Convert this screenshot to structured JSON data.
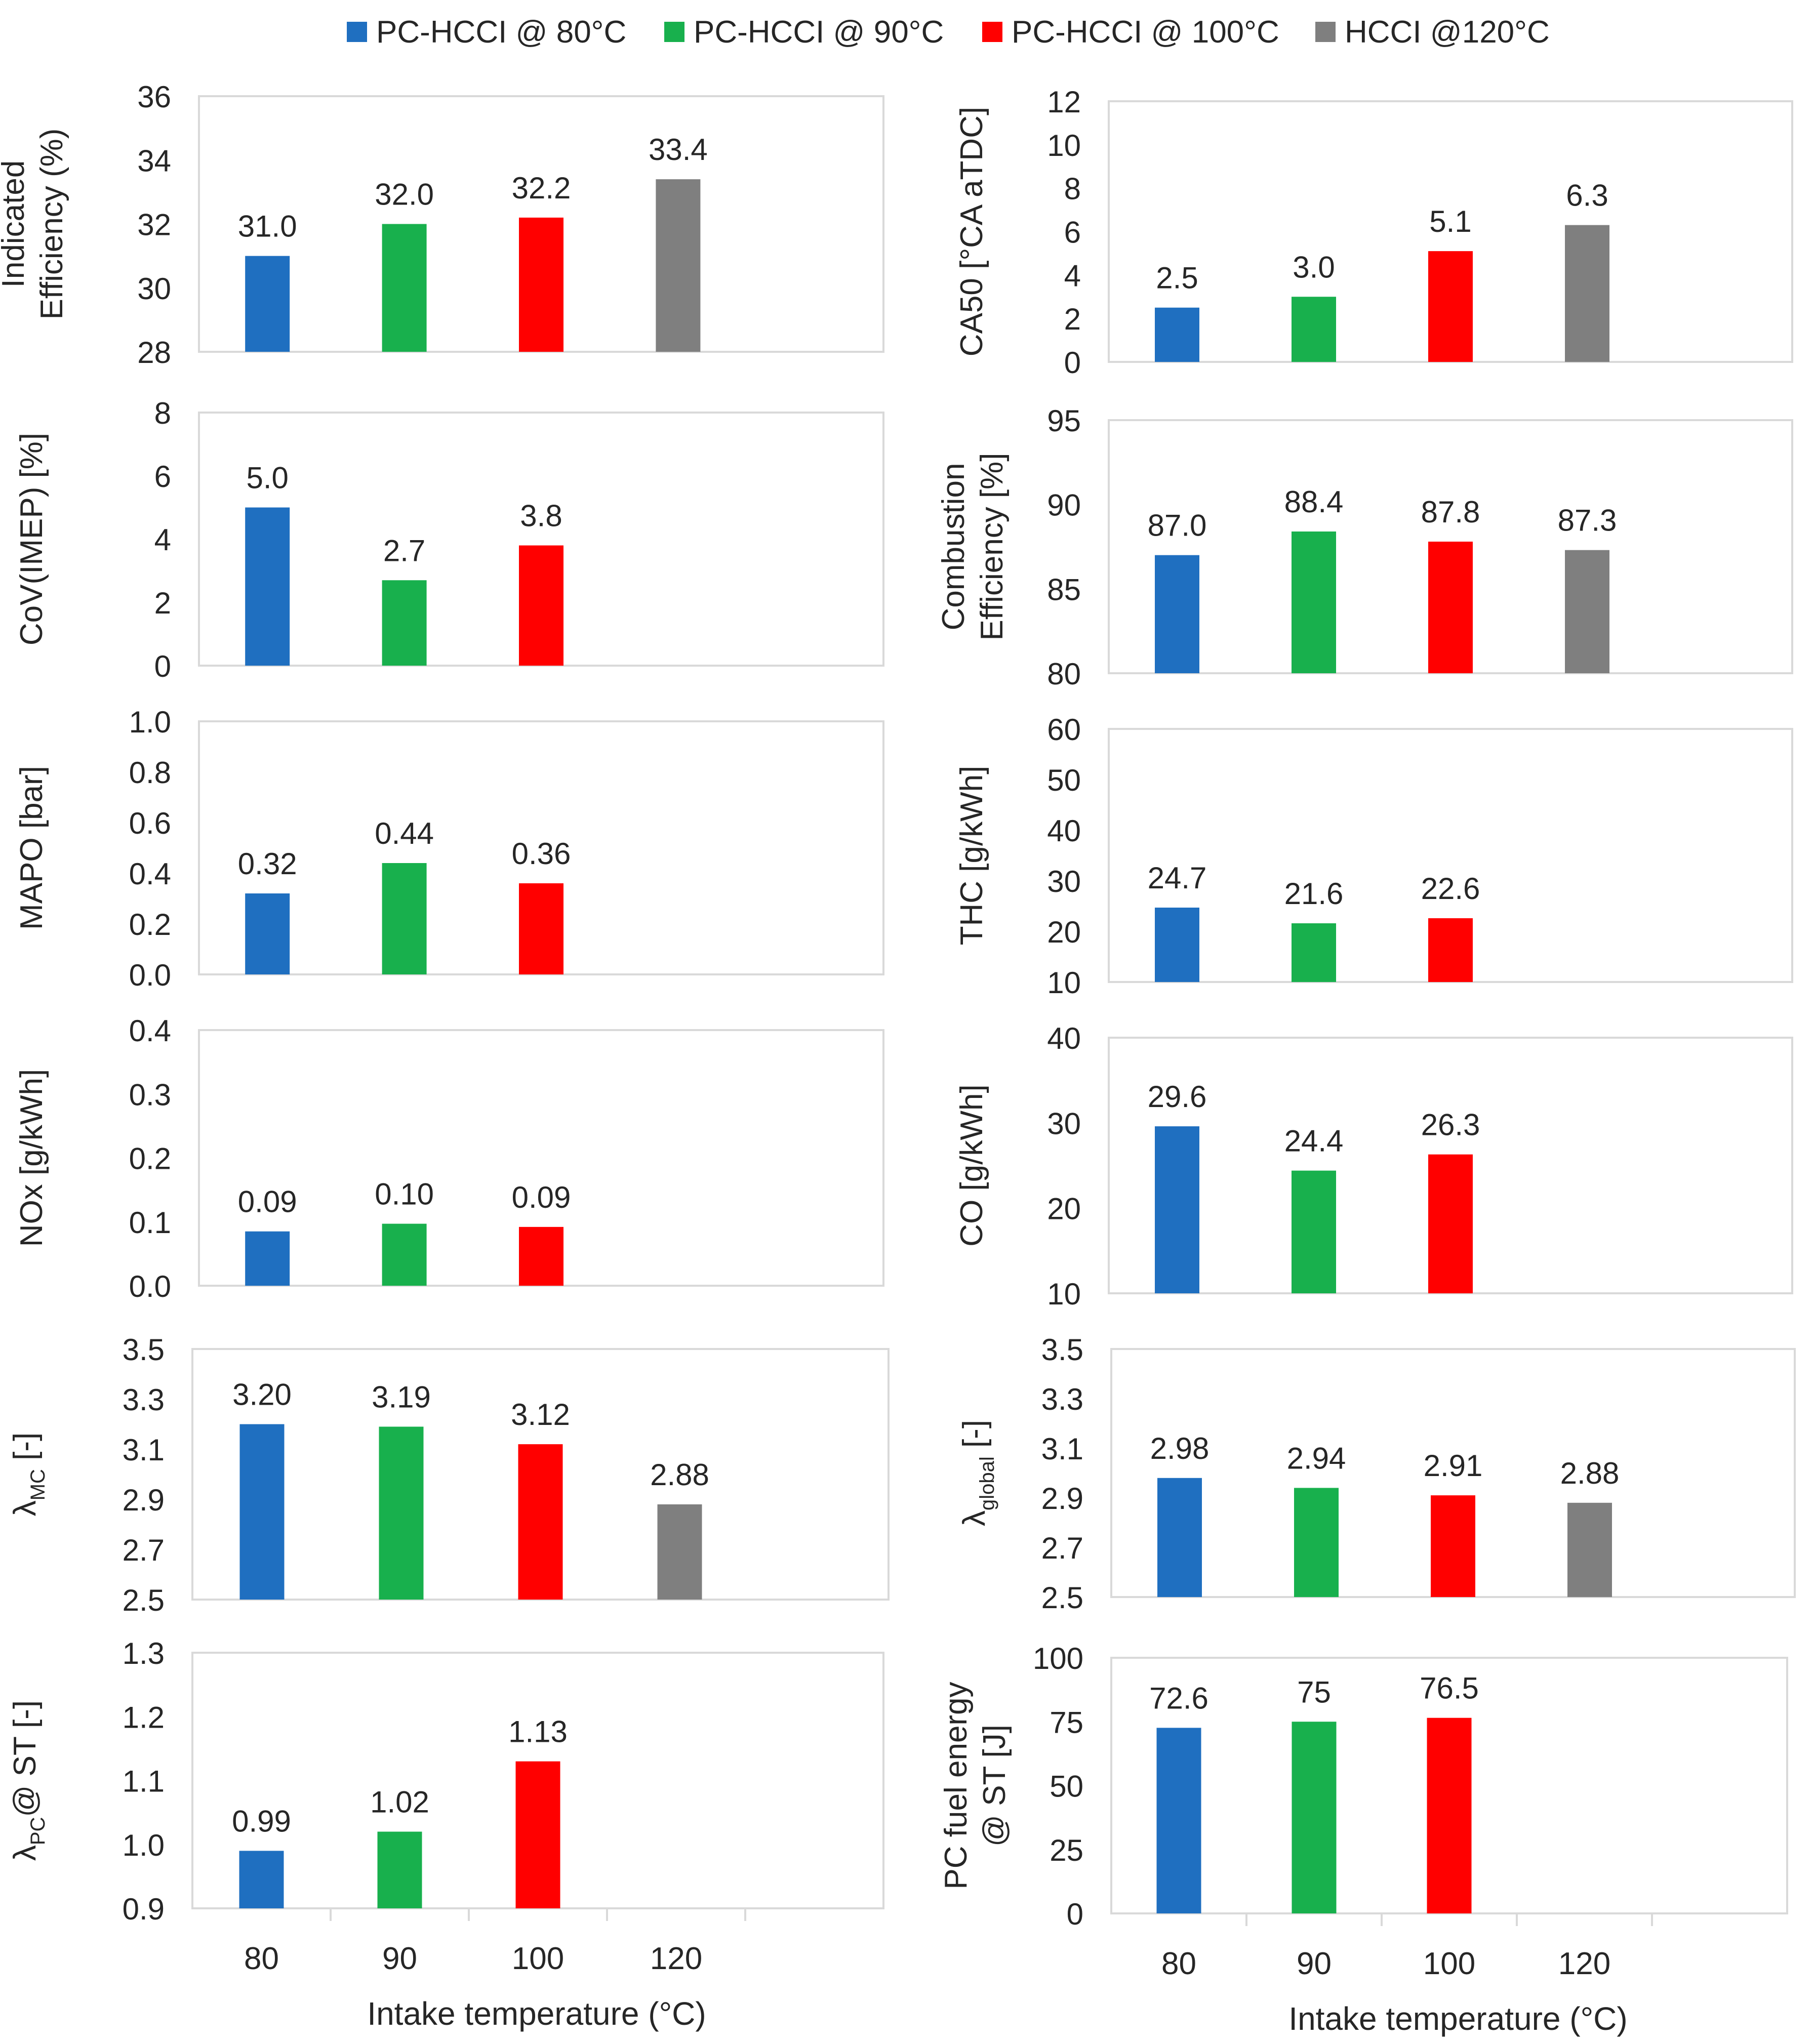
{
  "legend": [
    {
      "label": "PC-HCCI @ 80°C",
      "color": "#1f6fc0"
    },
    {
      "label": "PC-HCCI @ 90°C",
      "color": "#18b04d"
    },
    {
      "label": "PC-HCCI @ 100°C",
      "color": "#ff0000"
    },
    {
      "label": "HCCI @120°C",
      "color": "#7f7f7f"
    }
  ],
  "xlabel": "Intake temperature  (°C)",
  "chart_data": [
    {
      "type": "bar",
      "ylabel": [
        "Indicated",
        "Efficiency (%)"
      ],
      "ylim": [
        28,
        36
      ],
      "yticks": [
        "28",
        "30",
        "32",
        "34",
        "36"
      ],
      "categories": [
        "80",
        "90",
        "100",
        "120"
      ],
      "values": [
        31.0,
        32.0,
        32.2,
        33.4
      ],
      "labels": [
        "31.0",
        "32.0",
        "32.2",
        "33.4"
      ]
    },
    {
      "type": "bar",
      "ylabel": [
        "CA50 [°CA aTDC]"
      ],
      "ylim": [
        0,
        12
      ],
      "yticks": [
        "0",
        "2",
        "4",
        "6",
        "8",
        "10",
        "12"
      ],
      "categories": [
        "80",
        "90",
        "100",
        "120"
      ],
      "values": [
        2.5,
        3.0,
        5.1,
        6.3
      ],
      "labels": [
        "2.5",
        "3.0",
        "5.1",
        "6.3"
      ]
    },
    {
      "type": "bar",
      "ylabel": [
        "CoV(IMEP) [%]"
      ],
      "ylim": [
        0,
        8
      ],
      "yticks": [
        "0",
        "2",
        "4",
        "6",
        "8"
      ],
      "categories": [
        "80",
        "90",
        "100",
        "120"
      ],
      "values": [
        5.0,
        2.7,
        3.8,
        null
      ],
      "labels": [
        "5.0",
        "2.7",
        "3.8",
        ""
      ]
    },
    {
      "type": "bar",
      "ylabel": [
        "Combustion",
        "Efficiency [%]"
      ],
      "ylim": [
        80,
        95
      ],
      "yticks": [
        "80",
        "85",
        "90",
        "95"
      ],
      "categories": [
        "80",
        "90",
        "100",
        "120"
      ],
      "values": [
        87.0,
        88.4,
        87.8,
        87.3
      ],
      "labels": [
        "87.0",
        "88.4",
        "87.8",
        "87.3"
      ]
    },
    {
      "type": "bar",
      "ylabel": [
        "MAPO [bar]"
      ],
      "ylim": [
        0,
        1
      ],
      "yticks": [
        "0.0",
        "0.2",
        "0.4",
        "0.6",
        "0.8",
        "1.0"
      ],
      "categories": [
        "80",
        "90",
        "100",
        "120"
      ],
      "values": [
        0.32,
        0.44,
        0.36,
        null
      ],
      "labels": [
        "0.32",
        "0.44",
        "0.36",
        ""
      ]
    },
    {
      "type": "bar",
      "ylabel": [
        "THC [g/kWh]"
      ],
      "ylim": [
        10,
        60
      ],
      "yticks": [
        "10",
        "20",
        "30",
        "40",
        "50",
        "60"
      ],
      "categories": [
        "80",
        "90",
        "100",
        "120"
      ],
      "values": [
        24.7,
        21.6,
        22.6,
        null
      ],
      "labels": [
        "24.7",
        "21.6",
        "22.6",
        ""
      ]
    },
    {
      "type": "bar",
      "ylabel": [
        "NOx [g/kWh]"
      ],
      "ylim": [
        0,
        0.4
      ],
      "yticks": [
        "0.0",
        "0.1",
        "0.2",
        "0.3",
        "0.4"
      ],
      "categories": [
        "80",
        "90",
        "100",
        "120"
      ],
      "values": [
        0.085,
        0.097,
        0.092,
        null
      ],
      "labels": [
        "0.09",
        "0.10",
        "0.09",
        ""
      ]
    },
    {
      "type": "bar",
      "ylabel": [
        "CO [g/kWh]"
      ],
      "ylim": [
        10,
        40
      ],
      "yticks": [
        "10",
        "20",
        "30",
        "40"
      ],
      "categories": [
        "80",
        "90",
        "100",
        "120"
      ],
      "values": [
        29.6,
        24.4,
        26.3,
        null
      ],
      "labels": [
        "29.6",
        "24.4",
        "26.3",
        ""
      ]
    },
    {
      "type": "bar",
      "ylabel": [
        "λ",
        "MC",
        " [-]"
      ],
      "ylim": [
        2.5,
        3.5
      ],
      "yticks": [
        "2.5",
        "2.7",
        "2.9",
        "3.1",
        "3.3",
        "3.5"
      ],
      "categories": [
        "80",
        "90",
        "100",
        "120"
      ],
      "values": [
        3.2,
        3.19,
        3.12,
        2.88
      ],
      "labels": [
        "3.20",
        "3.19",
        "3.12",
        "2.88"
      ]
    },
    {
      "type": "bar",
      "ylabel": [
        "λ",
        "global",
        " [-]"
      ],
      "ylim": [
        2.5,
        3.5
      ],
      "yticks": [
        "2.5",
        "2.7",
        "2.9",
        "3.1",
        "3.3",
        "3.5"
      ],
      "categories": [
        "80",
        "90",
        "100",
        "120"
      ],
      "values": [
        2.98,
        2.94,
        2.91,
        2.88
      ],
      "labels": [
        "2.98",
        "2.94",
        "2.91",
        "2.88"
      ]
    },
    {
      "type": "bar",
      "ylabel": [
        "λ",
        "PC",
        "@ ST [-]"
      ],
      "ylim": [
        0.9,
        1.3
      ],
      "yticks": [
        "0.9",
        "1.0",
        "1.1",
        "1.2",
        "1.3"
      ],
      "categories": [
        "80",
        "90",
        "100",
        "120"
      ],
      "values": [
        0.99,
        1.02,
        1.13,
        null
      ],
      "labels": [
        "0.99",
        "1.02",
        "1.13",
        ""
      ],
      "xticks": [
        "80",
        "90",
        "100",
        "120"
      ]
    },
    {
      "type": "bar",
      "ylabel": [
        "PC fuel energy",
        "@ ST [J]"
      ],
      "ylim": [
        0,
        100
      ],
      "yticks": [
        "0",
        "25",
        "50",
        "75",
        "100"
      ],
      "categories": [
        "80",
        "90",
        "100",
        "120"
      ],
      "values": [
        72.6,
        75,
        76.5,
        null
      ],
      "labels": [
        "72.6",
        "75",
        "76.5",
        ""
      ],
      "xticks": [
        "80",
        "90",
        "100",
        "120"
      ]
    }
  ]
}
